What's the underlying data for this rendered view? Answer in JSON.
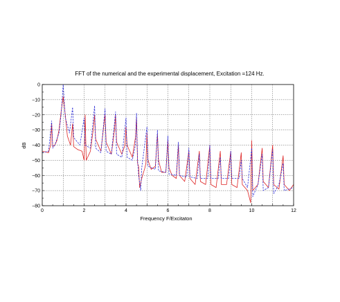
{
  "chart_data": {
    "type": "line",
    "title": "FFT of the numerical and the experimental displacement, Excitation =124 Hz.",
    "xlabel": "Frequency  F/Excitaton",
    "ylabel": "dB",
    "xlim": [
      0,
      12
    ],
    "ylim": [
      -80,
      0
    ],
    "xticks": [
      0,
      2,
      4,
      6,
      8,
      10,
      12
    ],
    "yticks": [
      0,
      -10,
      -20,
      -30,
      -40,
      -50,
      -60,
      -70,
      -80
    ],
    "grid": true,
    "legend": "none",
    "series": [
      {
        "color": "#dd2222",
        "style": "solid",
        "points": [
          [
            0,
            -44
          ],
          [
            0.3,
            -45
          ],
          [
            0.4,
            -40
          ],
          [
            0.45,
            -26
          ],
          [
            0.5,
            -41
          ],
          [
            0.6,
            -40
          ],
          [
            0.7,
            -37
          ],
          [
            0.8,
            -30
          ],
          [
            0.9,
            -18
          ],
          [
            1.0,
            -8
          ],
          [
            1.1,
            -20
          ],
          [
            1.2,
            -34
          ],
          [
            1.35,
            -40
          ],
          [
            1.45,
            -26
          ],
          [
            1.5,
            -41
          ],
          [
            1.7,
            -43
          ],
          [
            1.9,
            -44
          ],
          [
            2.0,
            -50
          ],
          [
            2.05,
            -20
          ],
          [
            2.1,
            -50
          ],
          [
            2.3,
            -44
          ],
          [
            2.45,
            -28
          ],
          [
            2.5,
            -20
          ],
          [
            2.55,
            -36
          ],
          [
            2.8,
            -44
          ],
          [
            3.0,
            -20
          ],
          [
            3.05,
            -38
          ],
          [
            3.3,
            -46
          ],
          [
            3.45,
            -30
          ],
          [
            3.5,
            -20
          ],
          [
            3.55,
            -38
          ],
          [
            3.8,
            -46
          ],
          [
            3.95,
            -40
          ],
          [
            4.0,
            -28
          ],
          [
            4.05,
            -40
          ],
          [
            4.3,
            -48
          ],
          [
            4.45,
            -35
          ],
          [
            4.5,
            -22
          ],
          [
            4.55,
            -52
          ],
          [
            4.6,
            -54
          ],
          [
            4.65,
            -68
          ],
          [
            4.75,
            -62
          ],
          [
            4.9,
            -55
          ],
          [
            4.95,
            -52
          ],
          [
            5.0,
            -32
          ],
          [
            5.05,
            -50
          ],
          [
            5.2,
            -56
          ],
          [
            5.4,
            -54
          ],
          [
            5.5,
            -33
          ],
          [
            5.55,
            -50
          ],
          [
            5.7,
            -58
          ],
          [
            5.9,
            -58
          ],
          [
            6.0,
            -37
          ],
          [
            6.05,
            -55
          ],
          [
            6.2,
            -60
          ],
          [
            6.4,
            -62
          ],
          [
            6.5,
            -40
          ],
          [
            6.55,
            -60
          ],
          [
            6.8,
            -64
          ],
          [
            7.0,
            -44
          ],
          [
            7.05,
            -62
          ],
          [
            7.3,
            -66
          ],
          [
            7.5,
            -44
          ],
          [
            7.55,
            -64
          ],
          [
            7.8,
            -66
          ],
          [
            8.0,
            -40
          ],
          [
            8.05,
            -66
          ],
          [
            8.3,
            -68
          ],
          [
            8.5,
            -44
          ],
          [
            8.55,
            -66
          ],
          [
            8.8,
            -66
          ],
          [
            9.0,
            -44
          ],
          [
            9.05,
            -66
          ],
          [
            9.3,
            -68
          ],
          [
            9.5,
            -45
          ],
          [
            9.55,
            -66
          ],
          [
            9.8,
            -70
          ],
          [
            9.95,
            -78
          ],
          [
            10.0,
            -37
          ],
          [
            10.05,
            -70
          ],
          [
            10.3,
            -66
          ],
          [
            10.5,
            -42
          ],
          [
            10.55,
            -64
          ],
          [
            10.8,
            -68
          ],
          [
            11.0,
            -40
          ],
          [
            11.05,
            -66
          ],
          [
            11.3,
            -69
          ],
          [
            11.5,
            -47
          ],
          [
            11.55,
            -66
          ],
          [
            11.8,
            -70
          ],
          [
            12.0,
            -66
          ]
        ]
      },
      {
        "color": "#2a2ad6",
        "style": "dashed",
        "points": [
          [
            0,
            -45
          ],
          [
            0.3,
            -44
          ],
          [
            0.45,
            -24
          ],
          [
            0.5,
            -42
          ],
          [
            0.6,
            -40
          ],
          [
            0.8,
            -32
          ],
          [
            0.9,
            -20
          ],
          [
            1.0,
            0
          ],
          [
            1.1,
            -22
          ],
          [
            1.3,
            -32
          ],
          [
            1.45,
            -15
          ],
          [
            1.5,
            -35
          ],
          [
            1.8,
            -40
          ],
          [
            2.0,
            -22
          ],
          [
            2.05,
            -40
          ],
          [
            2.3,
            -42
          ],
          [
            2.5,
            -14
          ],
          [
            2.55,
            -42
          ],
          [
            2.8,
            -45
          ],
          [
            3.0,
            -16
          ],
          [
            3.05,
            -44
          ],
          [
            3.3,
            -46
          ],
          [
            3.5,
            -18
          ],
          [
            3.55,
            -46
          ],
          [
            3.8,
            -48
          ],
          [
            4.0,
            -22
          ],
          [
            4.05,
            -48
          ],
          [
            4.3,
            -50
          ],
          [
            4.45,
            -40
          ],
          [
            4.5,
            -19
          ],
          [
            4.55,
            -50
          ],
          [
            4.6,
            -60
          ],
          [
            4.7,
            -70
          ],
          [
            4.75,
            -55
          ],
          [
            5.0,
            -28
          ],
          [
            5.05,
            -54
          ],
          [
            5.4,
            -56
          ],
          [
            5.5,
            -30
          ],
          [
            5.55,
            -57
          ],
          [
            5.9,
            -58
          ],
          [
            6.0,
            -34
          ],
          [
            6.05,
            -59
          ],
          [
            6.4,
            -60
          ],
          [
            6.5,
            -38
          ],
          [
            6.55,
            -60
          ],
          [
            6.9,
            -61
          ],
          [
            7.0,
            -42
          ],
          [
            7.05,
            -61
          ],
          [
            7.4,
            -62
          ],
          [
            7.5,
            -46
          ],
          [
            7.55,
            -62
          ],
          [
            7.9,
            -62
          ],
          [
            8.0,
            -40
          ],
          [
            8.05,
            -62
          ],
          [
            8.4,
            -62
          ],
          [
            8.5,
            -48
          ],
          [
            8.55,
            -62
          ],
          [
            8.9,
            -62
          ],
          [
            9.0,
            -44
          ],
          [
            9.05,
            -62
          ],
          [
            9.4,
            -62
          ],
          [
            9.5,
            -50
          ],
          [
            9.55,
            -62
          ],
          [
            9.8,
            -68
          ],
          [
            10.0,
            -42
          ],
          [
            10.05,
            -74
          ],
          [
            10.3,
            -66
          ],
          [
            10.5,
            -46
          ],
          [
            10.55,
            -70
          ],
          [
            10.8,
            -68
          ],
          [
            11.0,
            -43
          ],
          [
            11.05,
            -72
          ],
          [
            11.3,
            -66
          ],
          [
            11.5,
            -52
          ],
          [
            11.55,
            -70
          ],
          [
            12.0,
            -68
          ]
        ]
      }
    ]
  }
}
